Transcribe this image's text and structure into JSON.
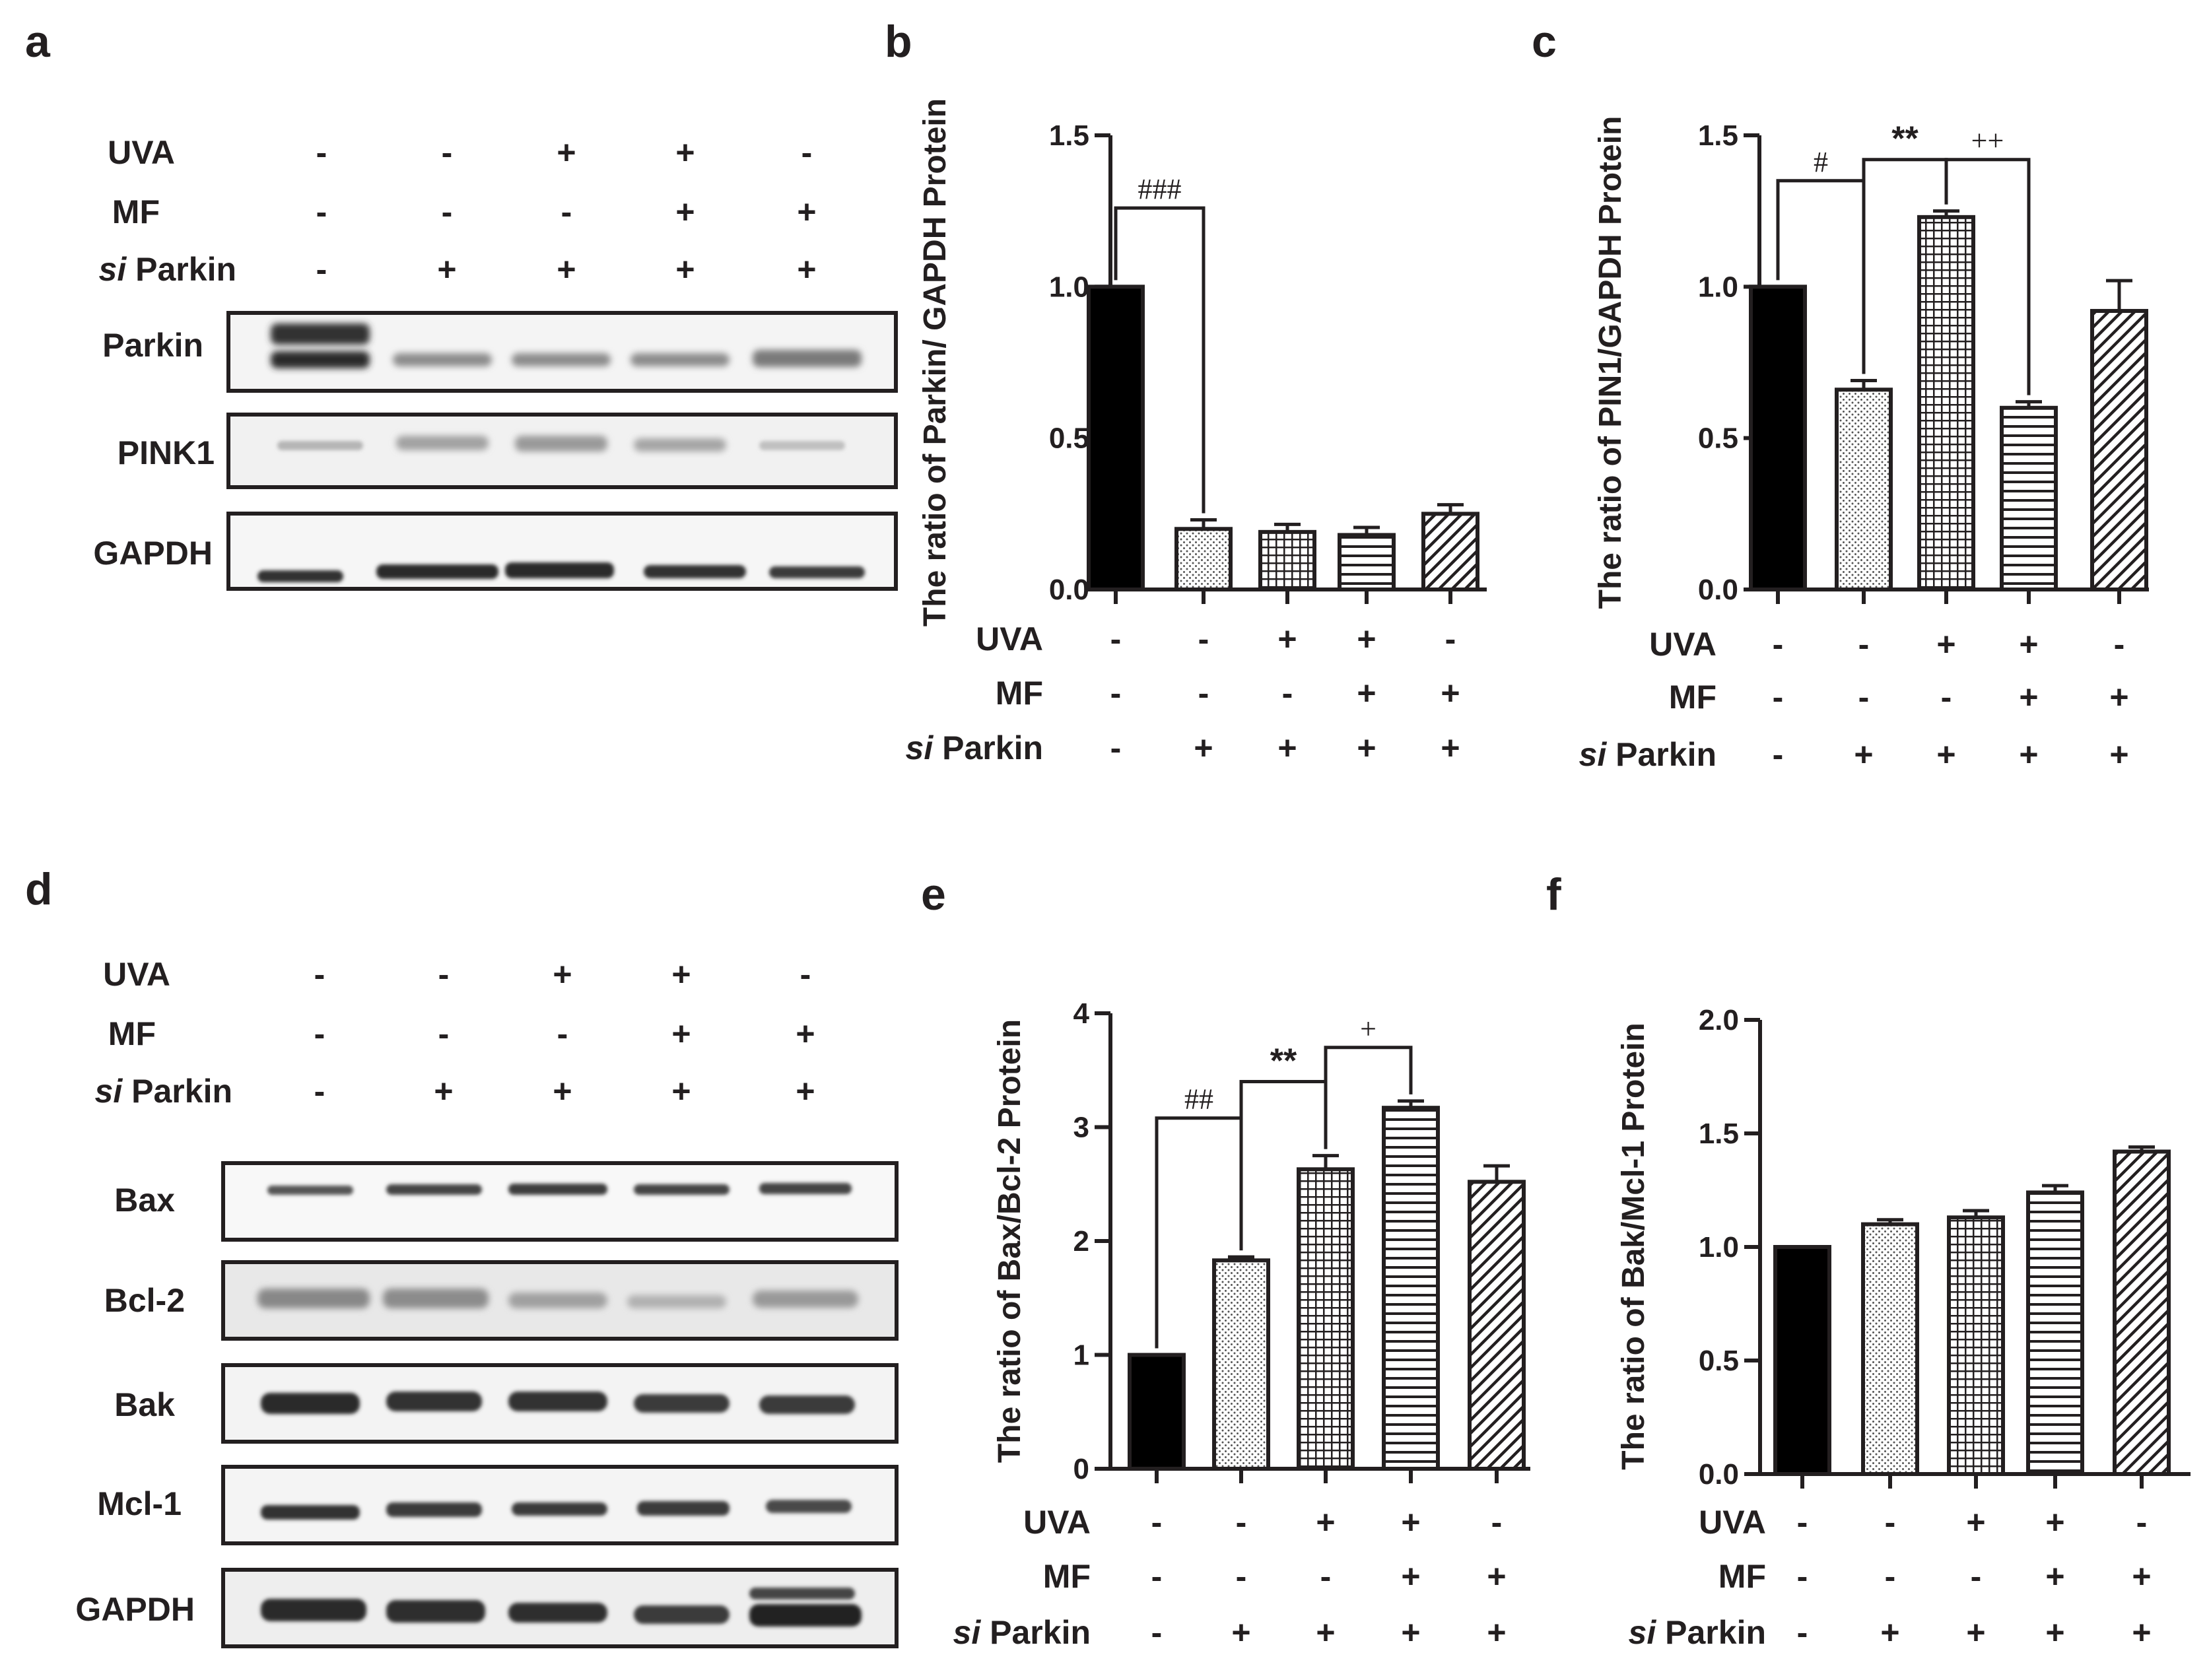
{
  "panels": {
    "a": {
      "label": "a",
      "conditions": [
        {
          "name": "UVA",
          "values": [
            "-",
            "-",
            "+",
            "+",
            "-"
          ]
        },
        {
          "name": "MF",
          "values": [
            "-",
            "-",
            "-",
            "+",
            "+"
          ]
        },
        {
          "name_italic": "si",
          "name": " Parkin",
          "values": [
            "-",
            "+",
            "+",
            "+",
            "+"
          ]
        }
      ],
      "blots": [
        "Parkin",
        "PINK1",
        "GAPDH"
      ]
    },
    "d": {
      "label": "d",
      "conditions": [
        {
          "name": "UVA",
          "values": [
            "-",
            "-",
            "+",
            "+",
            "-"
          ]
        },
        {
          "name": "MF",
          "values": [
            "-",
            "-",
            "-",
            "+",
            "+"
          ]
        },
        {
          "name_italic": "si",
          "name": " Parkin",
          "values": [
            "-",
            "+",
            "+",
            "+",
            "+"
          ]
        }
      ],
      "blots": [
        "Bax",
        "Bcl-2",
        "Bak",
        "Mcl-1",
        "GAPDH"
      ]
    }
  },
  "chart_data": [
    {
      "panel": "b",
      "type": "bar",
      "ylabel": "The ratio of Parkin/ GAPDH Protein",
      "ylim": [
        0,
        1.5
      ],
      "yticks": [
        "0.0",
        "0.5",
        "1.0",
        "1.5"
      ],
      "values": [
        1.0,
        0.2,
        0.19,
        0.18,
        0.25
      ],
      "errors": [
        0,
        0.03,
        0.025,
        0.025,
        0.03
      ],
      "patterns": [
        "solid",
        "dots",
        "grid",
        "hlines",
        "diag"
      ],
      "conditions": [
        {
          "name": "UVA",
          "values": [
            "-",
            "-",
            "+",
            "+",
            "-"
          ]
        },
        {
          "name": "MF",
          "values": [
            "-",
            "-",
            "-",
            "+",
            "+"
          ]
        },
        {
          "name_italic": "si",
          "name": " Parkin",
          "values": [
            "-",
            "+",
            "+",
            "+",
            "+"
          ]
        }
      ],
      "annotations": [
        {
          "text": "###",
          "from": 0,
          "to": 1,
          "y": 1.26,
          "bold": false
        }
      ]
    },
    {
      "panel": "c",
      "type": "bar",
      "ylabel": "The ratio of PIN1/GAPDH Protein",
      "ylim": [
        0,
        1.5
      ],
      "yticks": [
        "0.0",
        "0.5",
        "1.0",
        "1.5"
      ],
      "values": [
        1.0,
        0.66,
        1.23,
        0.6,
        0.92
      ],
      "errors": [
        0,
        0.03,
        0.02,
        0.02,
        0.1
      ],
      "patterns": [
        "solid",
        "dots",
        "grid",
        "hlines",
        "diag"
      ],
      "conditions": [
        {
          "name": "UVA",
          "values": [
            "-",
            "-",
            "+",
            "+",
            "-"
          ]
        },
        {
          "name": "MF",
          "values": [
            "-",
            "-",
            "-",
            "+",
            "+"
          ]
        },
        {
          "name_italic": "si",
          "name": " Parkin",
          "values": [
            "-",
            "+",
            "+",
            "+",
            "+"
          ]
        }
      ],
      "annotations": [
        {
          "text": "#",
          "from": 0,
          "to": 1,
          "y": 1.35,
          "bold": false
        },
        {
          "text": "**",
          "from": 1,
          "to": 2,
          "y": 1.42,
          "bold": true
        },
        {
          "text": "++",
          "from": 2,
          "to": 3,
          "y": 1.42,
          "bold": false
        }
      ]
    },
    {
      "panel": "e",
      "type": "bar",
      "ylabel": "The ratio of Bax/Bcl-2 Protein",
      "ylim": [
        0,
        4
      ],
      "yticks": [
        "0",
        "1",
        "2",
        "3",
        "4"
      ],
      "values": [
        1.0,
        1.83,
        2.63,
        3.17,
        2.52
      ],
      "errors": [
        0,
        0.03,
        0.12,
        0.06,
        0.14
      ],
      "patterns": [
        "solid",
        "dots",
        "grid",
        "hlines",
        "diag"
      ],
      "conditions": [
        {
          "name": "UVA",
          "values": [
            "-",
            "-",
            "+",
            "+",
            "-"
          ]
        },
        {
          "name": "MF",
          "values": [
            "-",
            "-",
            "-",
            "+",
            "+"
          ]
        },
        {
          "name_italic": "si",
          "name": " Parkin",
          "values": [
            "-",
            "+",
            "+",
            "+",
            "+"
          ]
        }
      ],
      "annotations": [
        {
          "text": "##",
          "from": 0,
          "to": 1,
          "y": 3.08,
          "bold": false
        },
        {
          "text": "**",
          "from": 1,
          "to": 2,
          "y": 3.4,
          "bold": true
        },
        {
          "text": "+",
          "from": 2,
          "to": 3,
          "y": 3.7,
          "bold": false
        }
      ]
    },
    {
      "panel": "f",
      "type": "bar",
      "ylabel": "The ratio of Bak/Mcl-1 Protein",
      "ylim": [
        0,
        2.0
      ],
      "yticks": [
        "0.0",
        "0.5",
        "1.0",
        "1.5",
        "2.0"
      ],
      "values": [
        1.0,
        1.1,
        1.13,
        1.24,
        1.42
      ],
      "errors": [
        0,
        0.02,
        0.03,
        0.03,
        0.02
      ],
      "patterns": [
        "solid",
        "dots",
        "grid",
        "hlines",
        "diag"
      ],
      "conditions": [
        {
          "name": "UVA",
          "values": [
            "-",
            "-",
            "+",
            "+",
            "-"
          ]
        },
        {
          "name": "MF",
          "values": [
            "-",
            "-",
            "-",
            "+",
            "+"
          ]
        },
        {
          "name_italic": "si",
          "name": " Parkin",
          "values": [
            "-",
            "+",
            "+",
            "+",
            "+"
          ]
        }
      ],
      "annotations": []
    }
  ]
}
